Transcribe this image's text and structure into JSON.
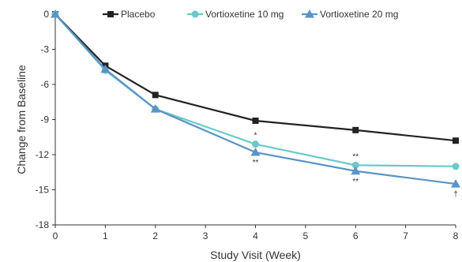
{
  "chart_data": {
    "type": "line",
    "title": "",
    "xlabel": "Study Visit (Week)",
    "ylabel": "Change from Baseline",
    "xlim": [
      0,
      8
    ],
    "ylim": [
      -18,
      0
    ],
    "xticks": [
      0,
      1,
      2,
      3,
      4,
      5,
      6,
      7,
      8
    ],
    "yticks": [
      0,
      -3,
      -6,
      -9,
      -12,
      -15,
      -18
    ],
    "grid": false,
    "legend_position": "top",
    "series": [
      {
        "name": "Placebo",
        "color": "#222222",
        "marker": "square",
        "x": [
          0,
          1,
          2,
          4,
          6,
          8
        ],
        "y": [
          0,
          -4.4,
          -6.9,
          -9.1,
          -9.9,
          -10.8
        ]
      },
      {
        "name": "Vortioxetine 10 mg",
        "color": "#6cc9c7",
        "marker": "circle",
        "x": [
          0,
          1,
          2,
          4,
          6,
          8
        ],
        "y": [
          0,
          -4.8,
          -8.1,
          -11.1,
          -12.9,
          -13.0
        ]
      },
      {
        "name": "Vortioxetine 20 mg",
        "color": "#5b93c6",
        "marker": "triangle",
        "x": [
          0,
          1,
          2,
          4,
          6,
          8
        ],
        "y": [
          0,
          -4.7,
          -8.1,
          -11.8,
          -13.4,
          -14.5
        ]
      }
    ],
    "annotations": [
      {
        "text": "*",
        "x": 4,
        "y": -11.1,
        "placement": "above"
      },
      {
        "text": "**",
        "x": 4,
        "y": -11.8,
        "placement": "below"
      },
      {
        "text": "**",
        "x": 6,
        "y": -12.9,
        "placement": "above"
      },
      {
        "text": "**",
        "x": 6,
        "y": -13.4,
        "placement": "below"
      },
      {
        "text": "†",
        "x": 8,
        "y": -14.5,
        "placement": "below"
      }
    ]
  }
}
